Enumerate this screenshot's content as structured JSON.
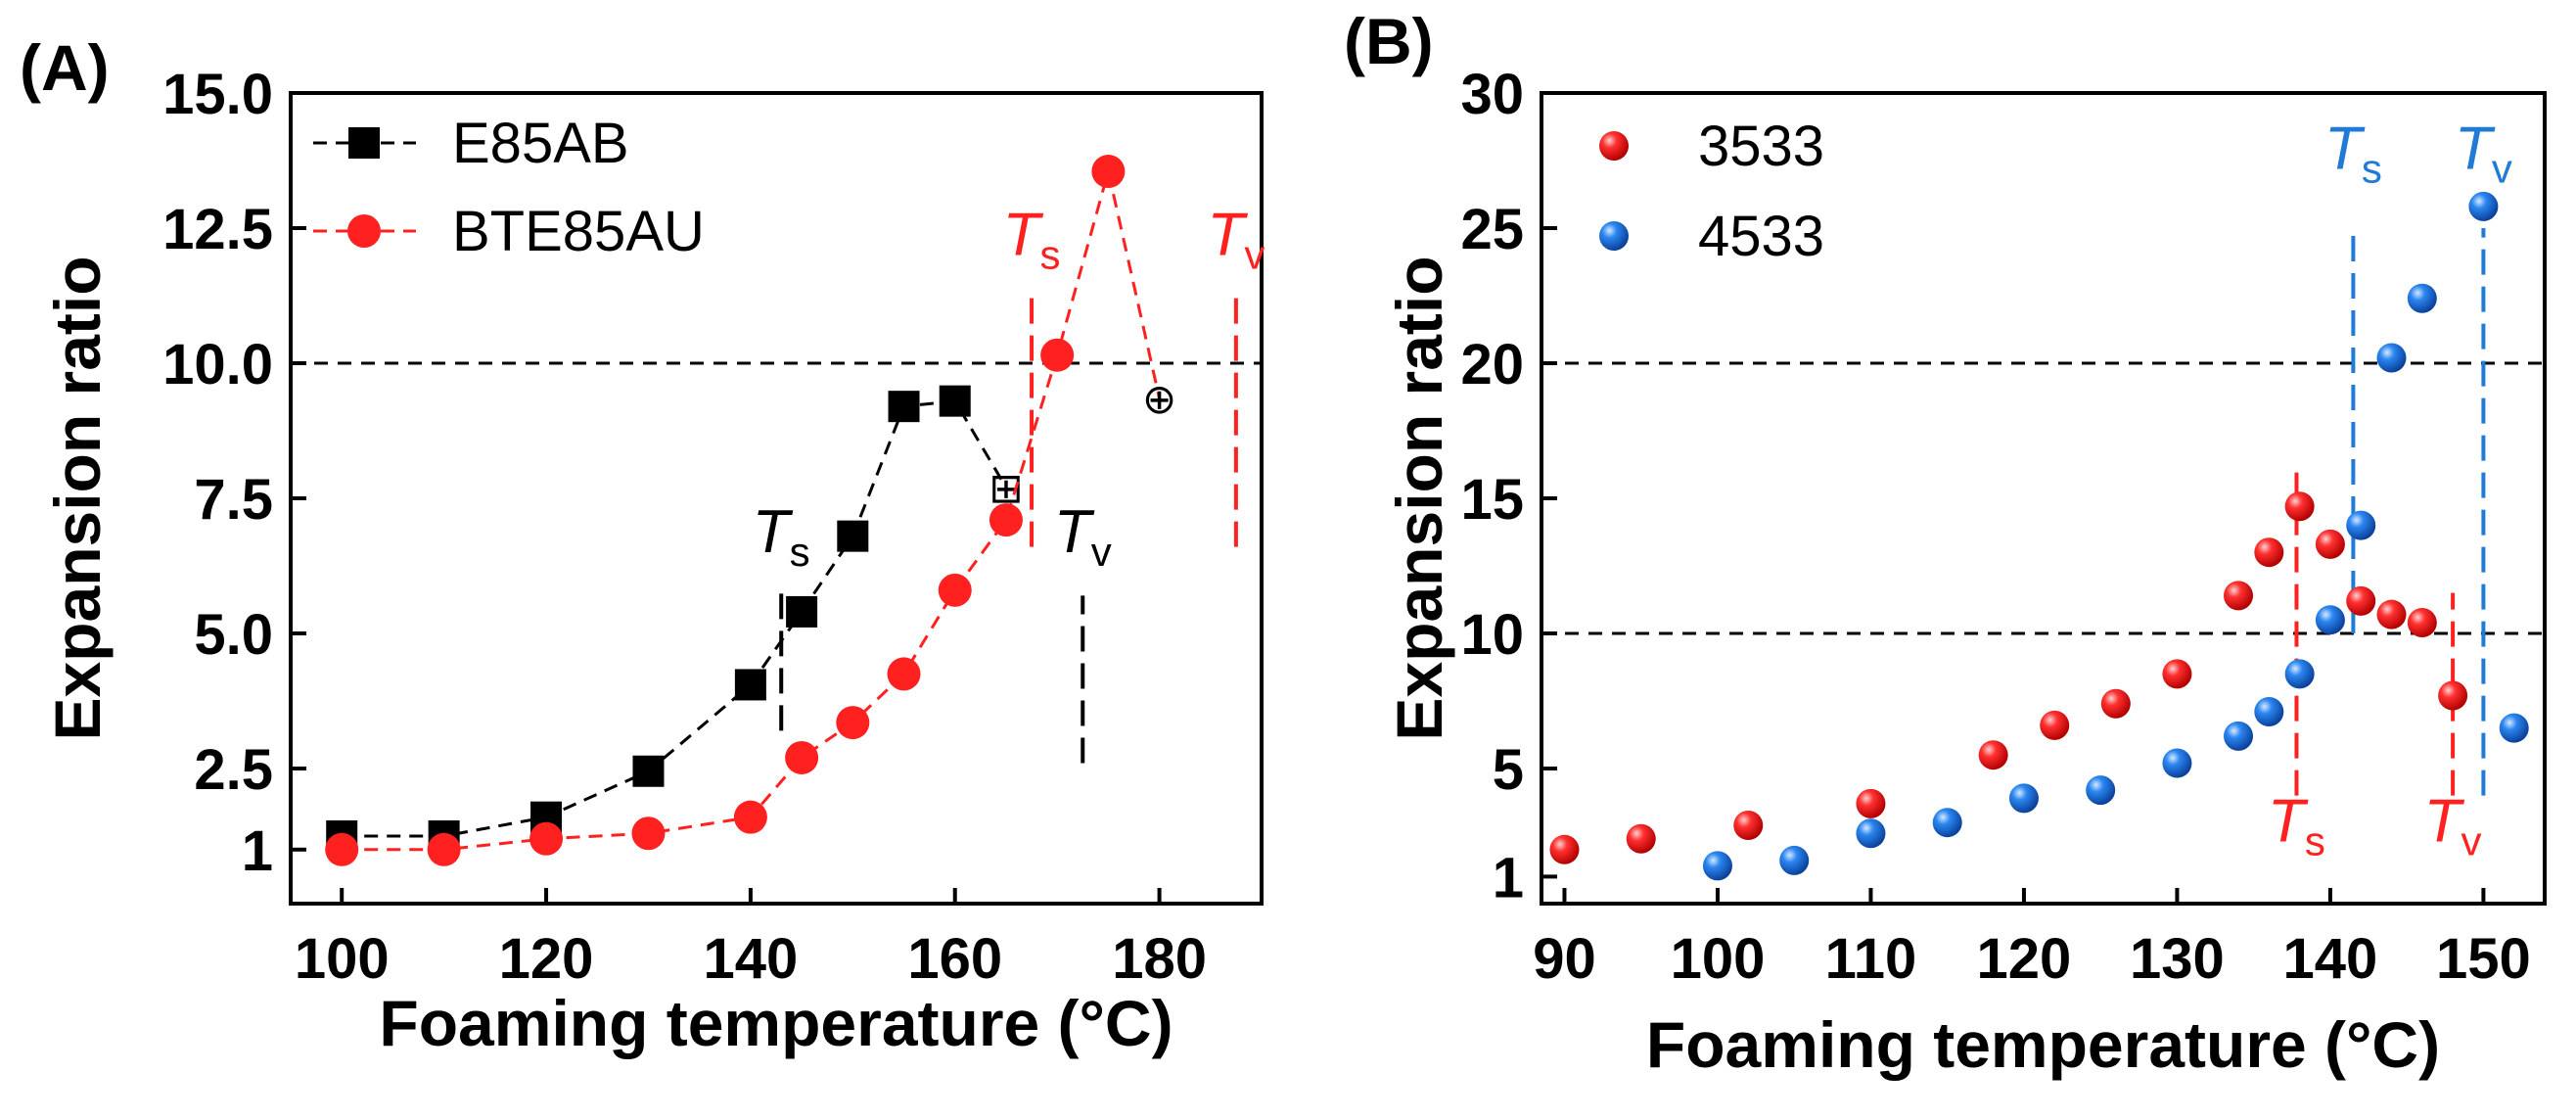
{
  "chart_data": [
    {
      "type": "line",
      "panel_label": "(A)",
      "title": "",
      "xlabel": "Foaming temperature (°C)",
      "ylabel": "Expansion ratio",
      "xlim": [
        95,
        190
      ],
      "ylim": [
        0,
        15
      ],
      "xticks": [
        100,
        120,
        140,
        160,
        180
      ],
      "xtick_labels": [
        "100",
        "120",
        "140",
        "160",
        "180"
      ],
      "yticks": [
        1,
        2.5,
        5,
        7.5,
        10,
        12.5,
        15
      ],
      "ytick_labels": [
        "1",
        "2.5",
        "5.0",
        "7.5",
        "10.0",
        "12.5",
        "15.0"
      ],
      "reference_lines": [
        {
          "axis": "y",
          "value": 10,
          "color": "#000000",
          "style": "dashed"
        }
      ],
      "legend_position": "top-left",
      "series": [
        {
          "name": "E85AB",
          "color": "#000000",
          "marker": "square",
          "x": [
            100,
            110,
            120,
            130,
            140,
            145,
            150,
            155,
            160,
            165
          ],
          "y": [
            1.25,
            1.25,
            1.6,
            2.45,
            4.05,
            5.4,
            6.8,
            9.2,
            9.3,
            7.7
          ],
          "open_marker_symbol": "⊞"
        },
        {
          "name": "BTE85AU",
          "color": "#ff2020",
          "marker": "circle",
          "x": [
            100,
            110,
            120,
            130,
            140,
            145,
            150,
            155,
            160,
            165,
            170,
            175,
            180
          ],
          "y": [
            1.0,
            1.0,
            1.2,
            1.3,
            1.6,
            2.7,
            3.35,
            4.25,
            5.8,
            7.1,
            10.15,
            13.55,
            9.35
          ],
          "open_marker_symbol": "⊕"
        }
      ],
      "annotations": [
        {
          "text": "T",
          "subscript": "s",
          "color": "#000000",
          "x": 143,
          "y": 6.5,
          "vline": [
            143,
            3.2,
            5.8
          ]
        },
        {
          "text": "T",
          "subscript": "v",
          "color": "#000000",
          "x": 172.5,
          "y": 6.5,
          "vline": [
            172.5,
            2.6,
            5.7
          ]
        },
        {
          "text": "T",
          "subscript": "s",
          "color": "#ff2020",
          "x": 167.5,
          "y": 12.0,
          "vline": [
            167.5,
            6.6,
            11.3
          ]
        },
        {
          "text": "T",
          "subscript": "v",
          "color": "#ff2020",
          "x": 187.5,
          "y": 12.0,
          "vline": [
            187.5,
            6.6,
            11.3
          ]
        }
      ]
    },
    {
      "type": "scatter",
      "panel_label": "(B)",
      "title": "",
      "xlabel": "Foaming temperature (°C)",
      "ylabel": "Expansion ratio",
      "xlim": [
        88.5,
        154
      ],
      "ylim": [
        0,
        30
      ],
      "xticks": [
        90,
        100,
        110,
        120,
        130,
        140,
        150
      ],
      "xtick_labels": [
        "90",
        "100",
        "110",
        "120",
        "130",
        "140",
        "150"
      ],
      "yticks": [
        1,
        5,
        10,
        15,
        20,
        25,
        30
      ],
      "ytick_labels": [
        "1",
        "5",
        "10",
        "15",
        "20",
        "25",
        "30"
      ],
      "reference_lines": [
        {
          "axis": "y",
          "value": 20,
          "color": "#000000",
          "style": "dashed"
        },
        {
          "axis": "y",
          "value": 10,
          "color": "#000000",
          "style": "dashed"
        }
      ],
      "legend_position": "top-left",
      "series": [
        {
          "name": "3533",
          "color": "#ff1a1a",
          "marker": "sphere",
          "x": [
            90,
            95,
            102,
            110,
            118,
            122,
            126,
            130,
            134,
            136,
            138,
            140,
            142,
            144,
            146,
            148
          ],
          "y": [
            2.0,
            2.4,
            2.9,
            3.7,
            5.5,
            6.6,
            7.4,
            8.5,
            11.4,
            13.0,
            14.7,
            13.3,
            11.2,
            10.7,
            10.4,
            7.7
          ]
        },
        {
          "name": "4533",
          "color": "#1a73e8",
          "marker": "sphere",
          "x": [
            100,
            105,
            110,
            115,
            120,
            125,
            130,
            134,
            136,
            138,
            140,
            142,
            144,
            146,
            150,
            152
          ],
          "y": [
            1.4,
            1.6,
            2.6,
            3.0,
            3.9,
            4.2,
            5.2,
            6.2,
            7.1,
            8.5,
            10.5,
            14.0,
            20.2,
            22.4,
            25.8,
            6.5
          ]
        }
      ],
      "annotations": [
        {
          "text": "T",
          "subscript": "s",
          "color": "#ff2020",
          "x": 137.8,
          "y": 2.3,
          "vline": [
            137.8,
            4.0,
            16.0
          ]
        },
        {
          "text": "T",
          "subscript": "v",
          "color": "#ff2020",
          "x": 148.0,
          "y": 2.3,
          "vline": [
            148.0,
            4.0,
            11.5
          ]
        },
        {
          "text": "T",
          "subscript": "s",
          "color": "#1f7bd6",
          "x": 141.5,
          "y": 27.2,
          "vline": [
            141.5,
            10.0,
            25.0
          ]
        },
        {
          "text": "T",
          "subscript": "v",
          "color": "#1f7bd6",
          "x": 150.0,
          "y": 27.2,
          "vline": [
            150.0,
            4.0,
            25.0
          ]
        }
      ]
    }
  ]
}
